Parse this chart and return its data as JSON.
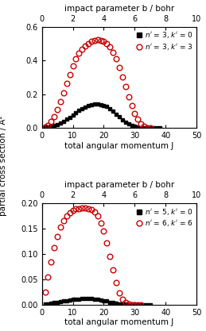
{
  "top": {
    "title": "impact parameter b / bohr",
    "xlabel": "total angular momentum J",
    "ylabel": "partial cross section / Å²",
    "xlim": [
      0,
      50
    ],
    "ylim": [
      0,
      0.6
    ],
    "yticks": [
      0.0,
      0.2,
      0.4,
      0.6
    ],
    "xticks_bottom": [
      0,
      10,
      20,
      30,
      40,
      50
    ],
    "b_tick_J_positions": [
      0,
      10,
      20,
      30,
      40,
      50
    ],
    "b_tick_labels": [
      "0",
      "2",
      "4",
      "6",
      "8",
      "10"
    ],
    "legend1": "$n'$ = 3, $k'$ = 0",
    "legend2": "$n'$ = 3, $k'$ = 3",
    "series1_color": "#000000",
    "series2_color": "#cc0000",
    "series1_marker": "s",
    "series2_marker": "o"
  },
  "bottom": {
    "title": "impact parameter b / bohr",
    "xlabel": "total angular momentum J",
    "ylabel": "partial cross section / Å²",
    "xlim": [
      0,
      50
    ],
    "ylim": [
      0,
      0.2
    ],
    "yticks": [
      0.0,
      0.05,
      0.1,
      0.15,
      0.2
    ],
    "xticks_bottom": [
      0,
      10,
      20,
      30,
      40,
      50
    ],
    "b_tick_J_positions": [
      0,
      10,
      20,
      30,
      40,
      50
    ],
    "b_tick_labels": [
      "0",
      "2",
      "4",
      "6",
      "8",
      "10"
    ],
    "legend1": "$n'$ = 5, $k'$ = 0",
    "legend2": "$n'$ = 6, $k'$ = 6",
    "series1_color": "#000000",
    "series2_color": "#cc0000",
    "series1_marker": "s",
    "series2_marker": "o"
  },
  "top_s1_J": [
    1,
    2,
    3,
    4,
    5,
    6,
    7,
    8,
    9,
    10,
    11,
    12,
    13,
    14,
    15,
    16,
    17,
    18,
    19,
    20,
    21,
    22,
    23,
    24,
    25,
    26,
    27,
    28,
    29,
    30,
    31,
    32,
    33,
    34,
    35,
    36,
    37,
    38
  ],
  "top_s1_y": [
    0.005,
    0.007,
    0.01,
    0.015,
    0.022,
    0.03,
    0.04,
    0.052,
    0.065,
    0.078,
    0.092,
    0.105,
    0.115,
    0.126,
    0.133,
    0.138,
    0.141,
    0.142,
    0.14,
    0.136,
    0.128,
    0.116,
    0.1,
    0.083,
    0.066,
    0.05,
    0.036,
    0.025,
    0.017,
    0.011,
    0.007,
    0.004,
    0.002,
    0.001,
    0.001,
    0.0,
    0.0,
    0.0
  ],
  "top_s2_J": [
    1,
    2,
    3,
    4,
    5,
    6,
    7,
    8,
    9,
    10,
    11,
    12,
    13,
    14,
    15,
    16,
    17,
    18,
    19,
    20,
    21,
    22,
    23,
    24,
    25,
    26,
    27,
    28,
    29,
    30,
    31,
    32,
    33,
    34,
    35
  ],
  "top_s2_y": [
    0.008,
    0.018,
    0.038,
    0.068,
    0.108,
    0.155,
    0.208,
    0.265,
    0.318,
    0.368,
    0.41,
    0.443,
    0.468,
    0.487,
    0.502,
    0.513,
    0.52,
    0.523,
    0.522,
    0.515,
    0.502,
    0.48,
    0.45,
    0.41,
    0.36,
    0.305,
    0.245,
    0.185,
    0.132,
    0.086,
    0.052,
    0.027,
    0.012,
    0.004,
    0.001
  ],
  "bot_s1_J": [
    1,
    2,
    3,
    4,
    5,
    6,
    7,
    8,
    9,
    10,
    11,
    12,
    13,
    14,
    15,
    16,
    17,
    18,
    19,
    20,
    21,
    22,
    23,
    24,
    25,
    26,
    27,
    28,
    29,
    30,
    31,
    32,
    33,
    34,
    35
  ],
  "bot_s1_y": [
    0.001,
    0.002,
    0.003,
    0.004,
    0.005,
    0.006,
    0.007,
    0.008,
    0.009,
    0.01,
    0.011,
    0.011,
    0.012,
    0.012,
    0.012,
    0.012,
    0.011,
    0.01,
    0.009,
    0.008,
    0.007,
    0.005,
    0.004,
    0.003,
    0.002,
    0.001,
    0.001,
    0.0,
    0.0,
    0.0,
    0.0,
    0.0,
    0.0,
    0.0,
    0.0
  ],
  "bot_s2_J": [
    1,
    2,
    3,
    4,
    5,
    6,
    7,
    8,
    9,
    10,
    11,
    12,
    13,
    14,
    15,
    16,
    17,
    18,
    19,
    20,
    21,
    22,
    23,
    24,
    25,
    26,
    27,
    28,
    29,
    30,
    31,
    32
  ],
  "bot_s2_y": [
    0.025,
    0.055,
    0.085,
    0.112,
    0.135,
    0.153,
    0.166,
    0.175,
    0.182,
    0.186,
    0.189,
    0.19,
    0.191,
    0.191,
    0.19,
    0.188,
    0.183,
    0.175,
    0.162,
    0.145,
    0.122,
    0.096,
    0.068,
    0.044,
    0.024,
    0.011,
    0.004,
    0.001,
    0.0,
    0.0,
    0.0,
    0.0
  ]
}
